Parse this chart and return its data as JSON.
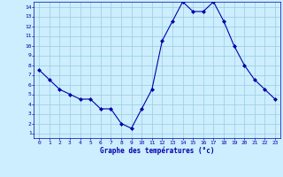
{
  "hours": [
    0,
    1,
    2,
    3,
    4,
    5,
    6,
    7,
    8,
    9,
    10,
    11,
    12,
    13,
    14,
    15,
    16,
    17,
    18,
    19,
    20,
    21,
    22,
    23
  ],
  "temperatures": [
    7.5,
    6.5,
    5.5,
    5.0,
    4.5,
    4.5,
    3.5,
    3.5,
    2.0,
    1.5,
    3.5,
    5.5,
    10.5,
    12.5,
    14.5,
    13.5,
    13.5,
    14.5,
    12.5,
    10.0,
    8.0,
    6.5,
    5.5,
    4.5
  ],
  "line_color": "#0000AA",
  "marker": "D",
  "marker_size": 2,
  "bg_color": "#cceeff",
  "grid_color": "#99ccdd",
  "xlabel": "Graphe des températures (°c)",
  "xlabel_color": "#0000AA",
  "tick_color": "#0000AA",
  "ylim_min": 0.5,
  "ylim_max": 14.5,
  "xlim_min": -0.5,
  "xlim_max": 23.5,
  "yticks": [
    1,
    2,
    3,
    4,
    5,
    6,
    7,
    8,
    9,
    10,
    11,
    12,
    13,
    14
  ],
  "xticks": [
    0,
    1,
    2,
    3,
    4,
    5,
    6,
    7,
    8,
    9,
    10,
    11,
    12,
    13,
    14,
    15,
    16,
    17,
    18,
    19,
    20,
    21,
    22,
    23
  ],
  "figsize": [
    3.2,
    2.0
  ],
  "dpi": 100
}
